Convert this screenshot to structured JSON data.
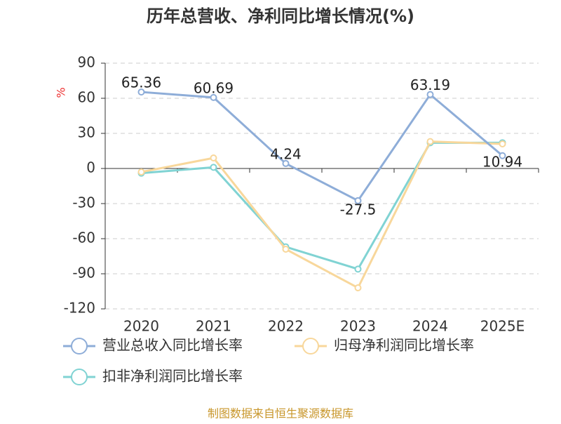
{
  "chart_data": {
    "type": "line",
    "title": "历年总营收、净利同比增长情况(%)",
    "y_label": "%",
    "categories": [
      "2020",
      "2021",
      "2022",
      "2023",
      "2024",
      "2025E"
    ],
    "series": [
      {
        "name": "营业总收入同比增长率",
        "color": "#8eadd8",
        "values": [
          65.36,
          60.69,
          4.24,
          -27.5,
          63.19,
          10.94
        ],
        "data_labels": true
      },
      {
        "name": "归母净利润同比增长率",
        "color": "#f8d79b",
        "values": [
          -3,
          9,
          -69,
          -102,
          23,
          21
        ]
      },
      {
        "name": "扣非净利润同比增长率",
        "color": "#80d3d3",
        "values": [
          -4,
          1,
          -67,
          -86,
          22,
          22
        ]
      }
    ],
    "ylim": [
      -120,
      90
    ],
    "yticks": [
      -120,
      -90,
      -60,
      -30,
      0,
      30,
      60,
      90
    ],
    "grid": true,
    "source": "制图数据来自恒生聚源数据库"
  }
}
